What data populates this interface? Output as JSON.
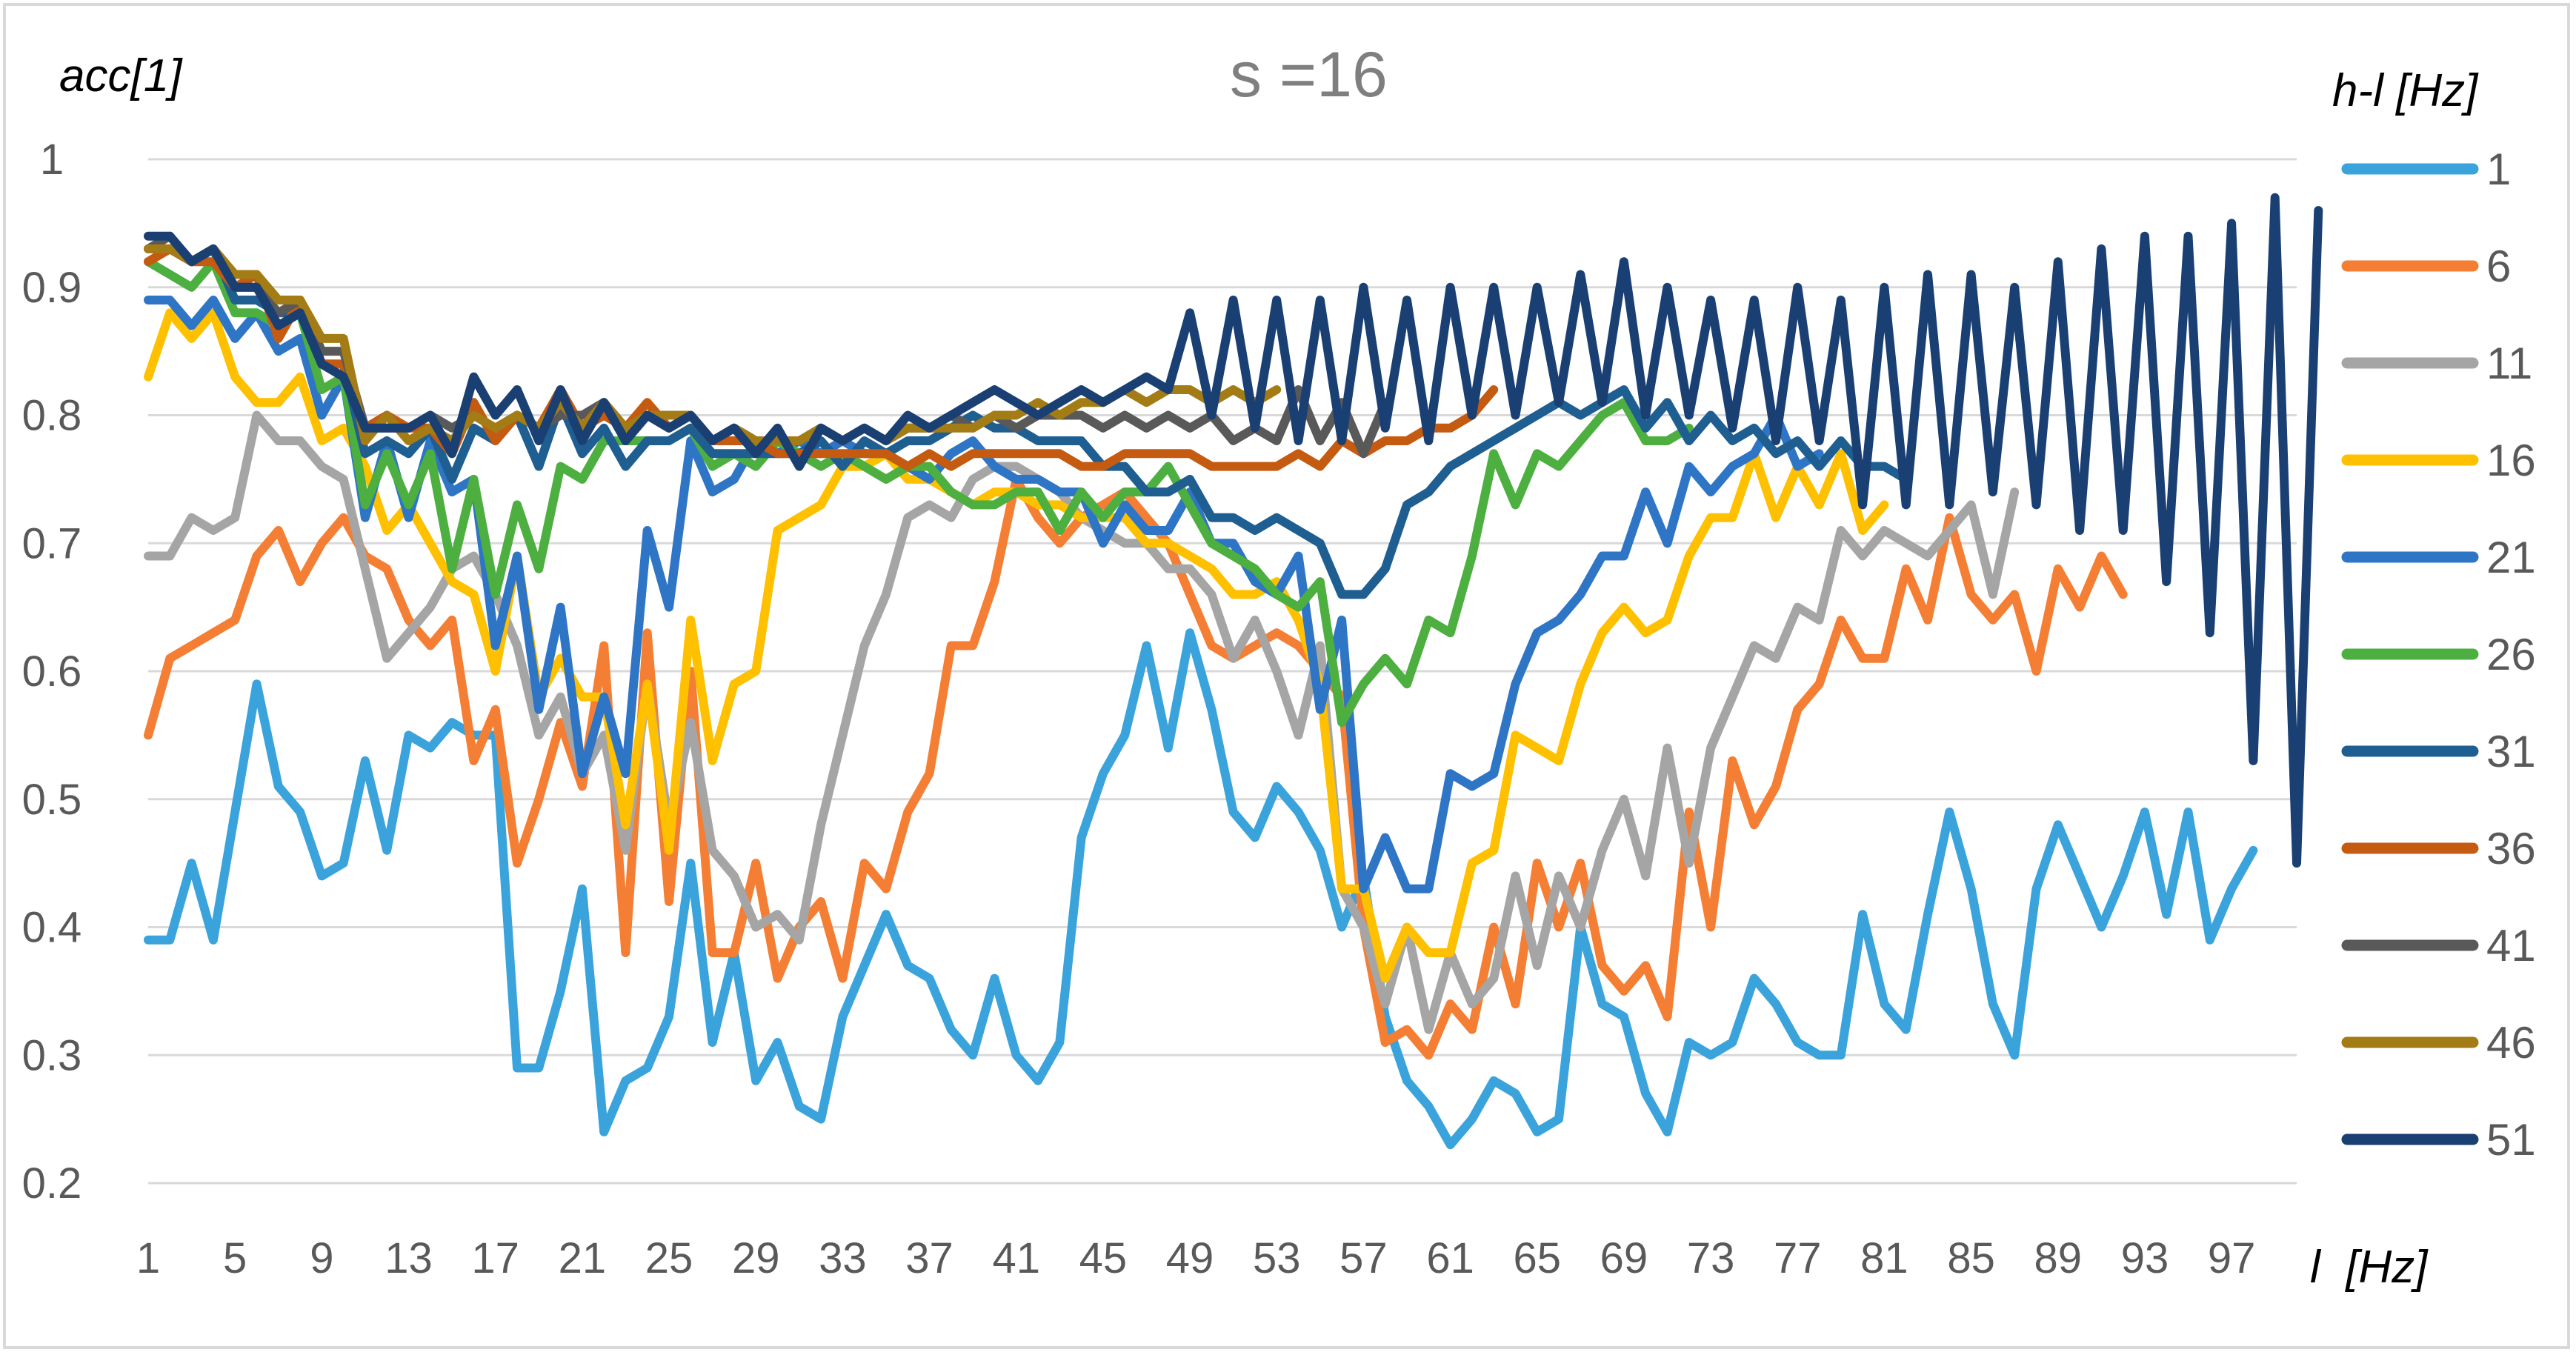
{
  "chart_data": {
    "type": "line",
    "title": "s =16",
    "ylabel": "acc[1]",
    "xlabel": "l  [Hz]",
    "legend_title": "h-l [Hz]",
    "legend_position": "right",
    "ylim": [
      0.2,
      1
    ],
    "yticks": [
      "0.2",
      "0.3",
      "0.4",
      "0.5",
      "0.6",
      "0.7",
      "0.8",
      "0.9",
      "1"
    ],
    "xlim": [
      1,
      100
    ],
    "xticks": [
      1,
      5,
      9,
      13,
      17,
      21,
      25,
      29,
      33,
      37,
      41,
      45,
      49,
      53,
      57,
      61,
      65,
      69,
      73,
      77,
      81,
      85,
      89,
      93,
      97
    ],
    "grid": true,
    "series": [
      {
        "name": "1",
        "color": "#3aa3dc",
        "x_start": 1,
        "values": [
          0.39,
          0.39,
          0.45,
          0.39,
          0.49,
          0.59,
          0.51,
          0.49,
          0.44,
          0.45,
          0.53,
          0.46,
          0.55,
          0.54,
          0.56,
          0.55,
          0.55,
          0.29,
          0.29,
          0.35,
          0.43,
          0.24,
          0.28,
          0.29,
          0.33,
          0.45,
          0.31,
          0.38,
          0.28,
          0.31,
          0.26,
          0.25,
          0.33,
          0.37,
          0.41,
          0.37,
          0.36,
          0.32,
          0.3,
          0.36,
          0.3,
          0.28,
          0.31,
          0.47,
          0.52,
          0.55,
          0.62,
          0.54,
          0.63,
          0.57,
          0.49,
          0.47,
          0.51,
          0.49,
          0.46,
          0.4,
          0.44,
          0.33,
          0.28,
          0.26,
          0.23,
          0.25,
          0.28,
          0.27,
          0.24,
          0.25,
          0.4,
          0.34,
          0.33,
          0.27,
          0.24,
          0.31,
          0.3,
          0.31,
          0.36,
          0.34,
          0.31,
          0.3,
          0.3,
          0.41,
          0.34,
          0.32,
          0.41,
          0.49,
          0.43,
          0.34,
          0.3,
          0.43,
          0.48,
          0.44,
          0.4,
          0.44,
          0.49,
          0.41,
          0.49,
          0.39,
          0.43,
          0.46
        ]
      },
      {
        "name": "6",
        "color": "#f47e33",
        "x_start": 1,
        "values": [
          0.55,
          0.61,
          0.62,
          0.63,
          0.64,
          0.69,
          0.71,
          0.67,
          0.7,
          0.72,
          0.69,
          0.68,
          0.64,
          0.62,
          0.64,
          0.53,
          0.57,
          0.45,
          0.5,
          0.56,
          0.51,
          0.62,
          0.38,
          0.63,
          0.42,
          0.6,
          0.38,
          0.38,
          0.45,
          0.36,
          0.4,
          0.42,
          0.36,
          0.45,
          0.43,
          0.49,
          0.52,
          0.62,
          0.62,
          0.67,
          0.75,
          0.72,
          0.7,
          0.72,
          0.73,
          0.74,
          0.72,
          0.7,
          0.66,
          0.62,
          0.61,
          0.62,
          0.63,
          0.62,
          0.6,
          0.58,
          0.4,
          0.31,
          0.32,
          0.3,
          0.34,
          0.32,
          0.4,
          0.34,
          0.45,
          0.4,
          0.45,
          0.37,
          0.35,
          0.37,
          0.33,
          0.49,
          0.4,
          0.53,
          0.48,
          0.51,
          0.57,
          0.59,
          0.64,
          0.61,
          0.61,
          0.68,
          0.64,
          0.72,
          0.66,
          0.64,
          0.66,
          0.6,
          0.68,
          0.65,
          0.69,
          0.66
        ]
      },
      {
        "name": "11",
        "color": "#a5a5a5",
        "x_start": 1,
        "values": [
          0.69,
          0.69,
          0.72,
          0.71,
          0.72,
          0.8,
          0.78,
          0.78,
          0.76,
          0.75,
          0.68,
          0.61,
          0.63,
          0.65,
          0.68,
          0.69,
          0.66,
          0.62,
          0.55,
          0.58,
          0.52,
          0.55,
          0.46,
          0.59,
          0.48,
          0.56,
          0.46,
          0.44,
          0.4,
          0.41,
          0.39,
          0.48,
          0.55,
          0.62,
          0.66,
          0.72,
          0.73,
          0.72,
          0.75,
          0.76,
          0.76,
          0.75,
          0.74,
          0.72,
          0.71,
          0.7,
          0.7,
          0.68,
          0.68,
          0.66,
          0.61,
          0.64,
          0.6,
          0.55,
          0.62,
          0.43,
          0.4,
          0.34,
          0.4,
          0.32,
          0.38,
          0.34,
          0.36,
          0.44,
          0.37,
          0.44,
          0.4,
          0.46,
          0.5,
          0.44,
          0.54,
          0.45,
          0.54,
          0.58,
          0.62,
          0.61,
          0.65,
          0.64,
          0.71,
          0.69,
          0.71,
          0.7,
          0.69,
          0.71,
          0.73,
          0.66,
          0.74
        ]
      },
      {
        "name": "16",
        "color": "#ffc000",
        "x_start": 1,
        "values": [
          0.83,
          0.88,
          0.86,
          0.88,
          0.83,
          0.81,
          0.81,
          0.83,
          0.78,
          0.79,
          0.76,
          0.71,
          0.73,
          0.7,
          0.67,
          0.66,
          0.6,
          0.69,
          0.58,
          0.61,
          0.58,
          0.58,
          0.48,
          0.59,
          0.46,
          0.64,
          0.53,
          0.59,
          0.6,
          0.71,
          0.72,
          0.73,
          0.76,
          0.76,
          0.77,
          0.75,
          0.75,
          0.74,
          0.73,
          0.74,
          0.74,
          0.73,
          0.73,
          0.72,
          0.72,
          0.72,
          0.7,
          0.7,
          0.69,
          0.68,
          0.66,
          0.66,
          0.67,
          0.64,
          0.59,
          0.43,
          0.43,
          0.36,
          0.4,
          0.38,
          0.38,
          0.45,
          0.46,
          0.55,
          0.54,
          0.53,
          0.59,
          0.63,
          0.65,
          0.63,
          0.64,
          0.69,
          0.72,
          0.72,
          0.77,
          0.72,
          0.76,
          0.73,
          0.77,
          0.71,
          0.73
        ]
      },
      {
        "name": "21",
        "color": "#2e75c6",
        "x_start": 1,
        "values": [
          0.89,
          0.89,
          0.87,
          0.89,
          0.86,
          0.88,
          0.85,
          0.86,
          0.8,
          0.83,
          0.72,
          0.78,
          0.72,
          0.78,
          0.74,
          0.75,
          0.62,
          0.69,
          0.57,
          0.65,
          0.52,
          0.58,
          0.52,
          0.71,
          0.65,
          0.78,
          0.74,
          0.75,
          0.78,
          0.77,
          0.78,
          0.77,
          0.78,
          0.77,
          0.77,
          0.76,
          0.75,
          0.77,
          0.78,
          0.76,
          0.75,
          0.75,
          0.74,
          0.74,
          0.7,
          0.73,
          0.71,
          0.71,
          0.74,
          0.7,
          0.7,
          0.67,
          0.66,
          0.69,
          0.57,
          0.64,
          0.43,
          0.47,
          0.43,
          0.43,
          0.52,
          0.51,
          0.52,
          0.59,
          0.63,
          0.64,
          0.66,
          0.69,
          0.69,
          0.74,
          0.7,
          0.76,
          0.74,
          0.76,
          0.77,
          0.8,
          0.76,
          0.77
        ]
      },
      {
        "name": "26",
        "color": "#4caf3f",
        "x_start": 1,
        "values": [
          0.92,
          0.91,
          0.9,
          0.92,
          0.88,
          0.88,
          0.87,
          0.88,
          0.82,
          0.83,
          0.73,
          0.77,
          0.73,
          0.77,
          0.68,
          0.75,
          0.66,
          0.73,
          0.68,
          0.76,
          0.75,
          0.78,
          0.78,
          0.78,
          0.78,
          0.79,
          0.76,
          0.77,
          0.76,
          0.78,
          0.77,
          0.76,
          0.77,
          0.76,
          0.75,
          0.76,
          0.76,
          0.74,
          0.73,
          0.73,
          0.74,
          0.74,
          0.71,
          0.74,
          0.72,
          0.74,
          0.74,
          0.76,
          0.73,
          0.7,
          0.69,
          0.68,
          0.66,
          0.65,
          0.67,
          0.56,
          0.59,
          0.61,
          0.59,
          0.64,
          0.63,
          0.69,
          0.77,
          0.73,
          0.77,
          0.76,
          0.78,
          0.8,
          0.81,
          0.78,
          0.78,
          0.79
        ]
      },
      {
        "name": "31",
        "color": "#1f5e91",
        "x_start": 1,
        "values": [
          0.93,
          0.93,
          0.92,
          0.93,
          0.89,
          0.89,
          0.88,
          0.88,
          0.84,
          0.84,
          0.77,
          0.78,
          0.77,
          0.79,
          0.75,
          0.79,
          0.78,
          0.8,
          0.76,
          0.81,
          0.77,
          0.79,
          0.76,
          0.78,
          0.78,
          0.79,
          0.77,
          0.77,
          0.77,
          0.77,
          0.77,
          0.78,
          0.76,
          0.78,
          0.77,
          0.78,
          0.78,
          0.79,
          0.8,
          0.79,
          0.79,
          0.78,
          0.78,
          0.78,
          0.76,
          0.76,
          0.74,
          0.74,
          0.75,
          0.72,
          0.72,
          0.71,
          0.72,
          0.71,
          0.7,
          0.66,
          0.66,
          0.68,
          0.73,
          0.74,
          0.76,
          0.77,
          0.78,
          0.79,
          0.8,
          0.81,
          0.8,
          0.81,
          0.82,
          0.79,
          0.81,
          0.78,
          0.8,
          0.78,
          0.79,
          0.77,
          0.78,
          0.76,
          0.78,
          0.76,
          0.76,
          0.75
        ]
      },
      {
        "name": "36",
        "color": "#c55a11",
        "x_start": 1,
        "values": [
          0.92,
          0.93,
          0.92,
          0.92,
          0.9,
          0.91,
          0.86,
          0.89,
          0.84,
          0.84,
          0.79,
          0.8,
          0.79,
          0.79,
          0.77,
          0.81,
          0.78,
          0.8,
          0.79,
          0.82,
          0.79,
          0.8,
          0.79,
          0.81,
          0.79,
          0.8,
          0.78,
          0.78,
          0.78,
          0.77,
          0.77,
          0.77,
          0.77,
          0.77,
          0.77,
          0.76,
          0.77,
          0.76,
          0.77,
          0.77,
          0.77,
          0.77,
          0.77,
          0.76,
          0.76,
          0.77,
          0.77,
          0.77,
          0.77,
          0.76,
          0.76,
          0.76,
          0.76,
          0.77,
          0.76,
          0.78,
          0.77,
          0.78,
          0.78,
          0.79,
          0.79,
          0.8,
          0.82
        ]
      },
      {
        "name": "41",
        "color": "#595959",
        "x_start": 1,
        "values": [
          0.93,
          0.94,
          0.92,
          0.93,
          0.9,
          0.9,
          0.88,
          0.89,
          0.85,
          0.85,
          0.79,
          0.79,
          0.79,
          0.8,
          0.79,
          0.8,
          0.79,
          0.8,
          0.79,
          0.8,
          0.8,
          0.81,
          0.79,
          0.8,
          0.79,
          0.8,
          0.78,
          0.79,
          0.78,
          0.78,
          0.78,
          0.79,
          0.78,
          0.79,
          0.78,
          0.79,
          0.79,
          0.8,
          0.79,
          0.8,
          0.79,
          0.8,
          0.8,
          0.8,
          0.79,
          0.8,
          0.79,
          0.8,
          0.79,
          0.8,
          0.78,
          0.79,
          0.78,
          0.82,
          0.78,
          0.81,
          0.77,
          0.81
        ]
      },
      {
        "name": "46",
        "color": "#a47c15",
        "x_start": 1,
        "values": [
          0.93,
          0.93,
          0.92,
          0.93,
          0.91,
          0.91,
          0.89,
          0.89,
          0.86,
          0.86,
          0.78,
          0.8,
          0.78,
          0.79,
          0.78,
          0.8,
          0.79,
          0.8,
          0.79,
          0.81,
          0.79,
          0.81,
          0.79,
          0.8,
          0.8,
          0.8,
          0.78,
          0.79,
          0.78,
          0.78,
          0.78,
          0.79,
          0.78,
          0.79,
          0.78,
          0.79,
          0.79,
          0.79,
          0.79,
          0.8,
          0.8,
          0.81,
          0.8,
          0.81,
          0.81,
          0.82,
          0.81,
          0.82,
          0.82,
          0.81,
          0.82,
          0.81,
          0.82
        ]
      },
      {
        "name": "51",
        "color": "#1a3f73",
        "x_start": 1,
        "values": [
          0.94,
          0.94,
          0.92,
          0.93,
          0.9,
          0.9,
          0.87,
          0.88,
          0.84,
          0.83,
          0.79,
          0.79,
          0.79,
          0.8,
          0.77,
          0.83,
          0.8,
          0.82,
          0.78,
          0.82,
          0.78,
          0.81,
          0.78,
          0.8,
          0.79,
          0.8,
          0.78,
          0.79,
          0.77,
          0.79,
          0.76,
          0.79,
          0.78,
          0.79,
          0.78,
          0.8,
          0.79,
          0.8,
          0.81,
          0.82,
          0.81,
          0.8,
          0.81,
          0.82,
          0.81,
          0.82,
          0.83,
          0.82,
          0.88,
          0.8,
          0.89,
          0.79,
          0.89,
          0.78,
          0.89,
          0.78,
          0.9,
          0.79,
          0.89,
          0.78,
          0.9,
          0.8,
          0.9,
          0.8,
          0.9,
          0.81,
          0.91,
          0.81,
          0.92,
          0.8,
          0.9,
          0.8,
          0.89,
          0.79,
          0.89,
          0.78,
          0.9,
          0.78,
          0.89,
          0.73,
          0.9,
          0.73,
          0.91,
          0.73,
          0.91,
          0.74,
          0.9,
          0.73,
          0.92,
          0.71,
          0.93,
          0.71,
          0.94,
          0.67,
          0.94,
          0.63,
          0.95,
          0.53,
          0.97,
          0.45,
          0.96
        ]
      }
    ]
  }
}
